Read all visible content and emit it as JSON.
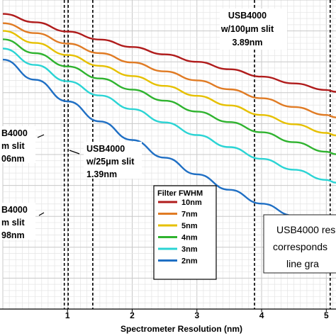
{
  "chart_data": {
    "type": "line",
    "xlabel": "Spectrometer Resolution (nm)",
    "xlim": [
      0,
      5.15
    ],
    "ylim": [
      0,
      1
    ],
    "x_ticks": [
      "1",
      "2",
      "3",
      "4",
      "5"
    ],
    "grid": true,
    "series": [
      {
        "name": "10nm",
        "color": "#b01c1c",
        "points": [
          [
            0,
            0.955
          ],
          [
            0.5,
            0.928
          ],
          [
            1,
            0.898
          ],
          [
            1.5,
            0.872
          ],
          [
            2,
            0.848
          ],
          [
            2.5,
            0.824
          ],
          [
            3,
            0.8
          ],
          [
            3.5,
            0.776
          ],
          [
            4,
            0.752
          ],
          [
            4.5,
            0.73
          ],
          [
            5,
            0.709
          ],
          [
            5.15,
            0.703
          ]
        ]
      },
      {
        "name": "7nm",
        "color": "#e07b24",
        "points": [
          [
            0,
            0.925
          ],
          [
            0.5,
            0.893
          ],
          [
            1,
            0.859
          ],
          [
            1.5,
            0.828
          ],
          [
            2,
            0.798
          ],
          [
            2.5,
            0.769
          ],
          [
            3,
            0.74
          ],
          [
            3.5,
            0.711
          ],
          [
            4,
            0.682
          ],
          [
            4.5,
            0.654
          ],
          [
            5,
            0.628
          ],
          [
            5.15,
            0.62
          ]
        ]
      },
      {
        "name": "5nm",
        "color": "#e6c000",
        "points": [
          [
            0,
            0.9
          ],
          [
            0.5,
            0.861
          ],
          [
            1,
            0.822
          ],
          [
            1.5,
            0.787
          ],
          [
            2,
            0.754
          ],
          [
            2.5,
            0.722
          ],
          [
            3,
            0.69
          ],
          [
            3.5,
            0.659
          ],
          [
            4,
            0.628
          ],
          [
            4.5,
            0.598
          ],
          [
            5,
            0.57
          ],
          [
            5.15,
            0.562
          ]
        ]
      },
      {
        "name": "4nm",
        "color": "#2fb32f",
        "points": [
          [
            0,
            0.873
          ],
          [
            0.5,
            0.828
          ],
          [
            1,
            0.785
          ],
          [
            1.5,
            0.746
          ],
          [
            2,
            0.71
          ],
          [
            2.5,
            0.674
          ],
          [
            3,
            0.639
          ],
          [
            3.5,
            0.605
          ],
          [
            4,
            0.572
          ],
          [
            4.5,
            0.54
          ],
          [
            5,
            0.509
          ],
          [
            5.15,
            0.501
          ]
        ]
      },
      {
        "name": "3nm",
        "color": "#2bd4d4",
        "points": [
          [
            0,
            0.843
          ],
          [
            0.5,
            0.79
          ],
          [
            1,
            0.737
          ],
          [
            1.5,
            0.691
          ],
          [
            2,
            0.647
          ],
          [
            2.5,
            0.604
          ],
          [
            3,
            0.563
          ],
          [
            3.5,
            0.524
          ],
          [
            4,
            0.486
          ],
          [
            4.5,
            0.451
          ],
          [
            5,
            0.418
          ],
          [
            5.15,
            0.409
          ]
        ]
      },
      {
        "name": "2nm",
        "color": "#1f6fc4",
        "points": [
          [
            0,
            0.807
          ],
          [
            0.5,
            0.742
          ],
          [
            1,
            0.672
          ],
          [
            1.5,
            0.607
          ],
          [
            2,
            0.547
          ],
          [
            2.5,
            0.49
          ],
          [
            3,
            0.436
          ],
          [
            3.5,
            0.386
          ],
          [
            4,
            0.341
          ],
          [
            4.5,
            0.302
          ],
          [
            5,
            0.268
          ],
          [
            5.15,
            0.258
          ]
        ]
      }
    ],
    "vlines": [
      0.95,
      1.01,
      1.39,
      3.89,
      5.06
    ]
  },
  "annotations": {
    "usb_100_line1": "USB4000",
    "usb_100_line2": "w/100μm slit",
    "usb_100_line3": "3.89nm",
    "usb_25_line1": "USB4000",
    "usb_25_line2": "w/25μm slit",
    "usb_25_line3": "1.39nm",
    "cut_a_line1": "B4000",
    "cut_a_line2": "m slit",
    "cut_a_line3": "06nm",
    "cut_b_line1": "B4000",
    "cut_b_line2": "m slit",
    "cut_b_line3": "98nm"
  },
  "legend": {
    "title": "Filter FWHM"
  },
  "note": {
    "line1": "USB4000 res",
    "line2": "corresponds",
    "line3": "line gra"
  }
}
